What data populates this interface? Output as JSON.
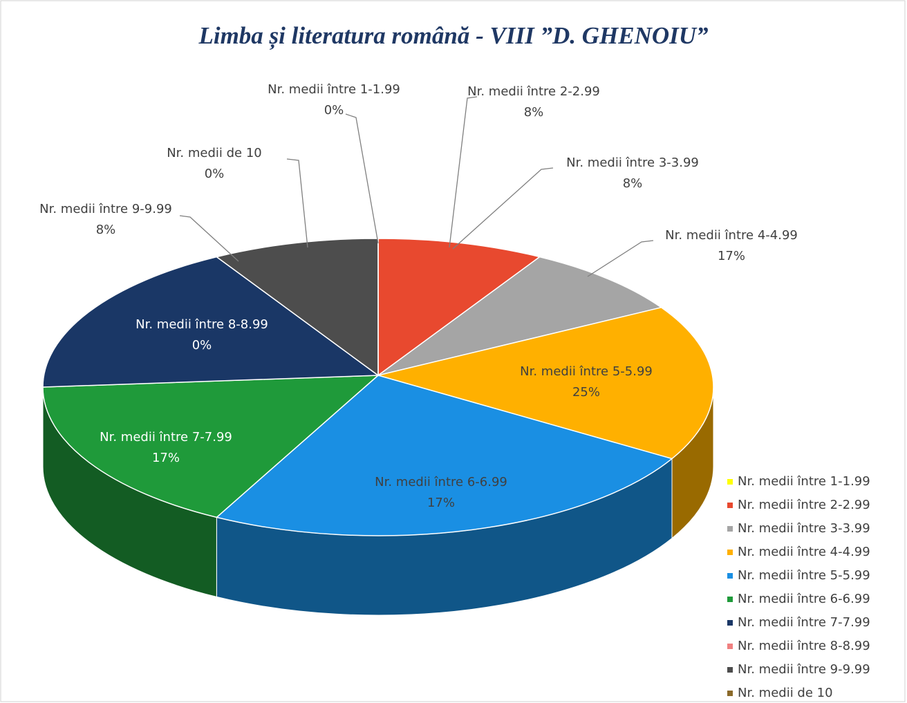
{
  "chart_data": {
    "type": "pie3d",
    "title": "Limba și literatura română - VIII ”D. GHENOIU”",
    "categories": [
      "Nr. medii între 1-1.99",
      "Nr. medii între 2-2.99",
      "Nr. medii între 3-3.99",
      "Nr. medii între 4-4.99",
      "Nr. medii între 5-5.99",
      "Nr. medii între 6-6.99",
      "Nr. medii între 7-7.99",
      "Nr. medii între 8-8.99",
      "Nr. medii între 9-9.99",
      "Nr. medii de 10"
    ],
    "values": [
      0,
      8,
      8,
      17,
      25,
      17,
      17,
      0,
      8,
      0
    ],
    "value_labels": [
      "0%",
      "8%",
      "8%",
      "17%",
      "25%",
      "17%",
      "17%",
      "0%",
      "8%",
      "0%"
    ],
    "colors": [
      "#ffff00",
      "#e8492f",
      "#a5a5a5",
      "#ffb000",
      "#1a8fe3",
      "#1f9a3a",
      "#1a3766",
      "#f08080",
      "#4d4d4d",
      "#8b6a2a"
    ],
    "legend": "right"
  }
}
